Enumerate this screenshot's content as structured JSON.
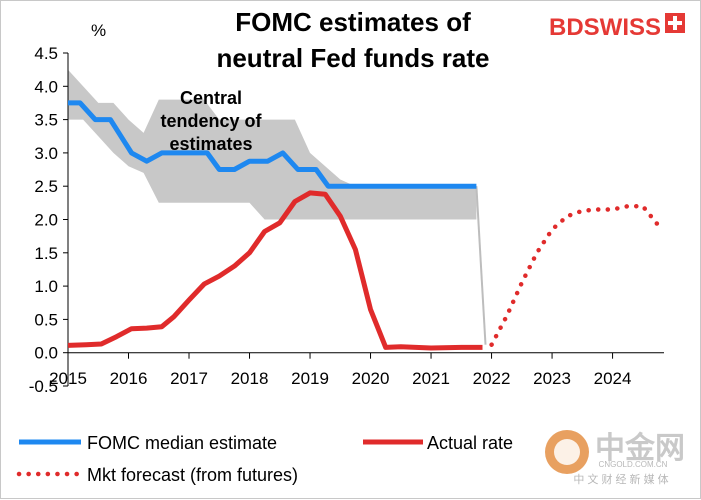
{
  "chart_data": {
    "type": "line",
    "title_lines": [
      "FOMC estimates of",
      "neutral Fed funds rate"
    ],
    "unit_label": "%",
    "annotation_lines": [
      "Central",
      "tendency of",
      "estimates"
    ],
    "ylim": [
      -0.5,
      4.5
    ],
    "y_ticks": [
      "-0.5",
      "0.0",
      "0.5",
      "1.0",
      "1.5",
      "2.0",
      "2.5",
      "3.0",
      "3.5",
      "4.0",
      "4.5"
    ],
    "xlim": [
      2015,
      2024.85
    ],
    "x_ticks": [
      "2015",
      "2016",
      "2017",
      "2018",
      "2019",
      "2020",
      "2021",
      "2022",
      "2023",
      "2024"
    ],
    "band": {
      "name": "Central tendency of estimates",
      "x": [
        2015.0,
        2015.25,
        2015.5,
        2015.75,
        2016.0,
        2016.25,
        2016.5,
        2016.75,
        2017.0,
        2017.25,
        2017.5,
        2017.75,
        2018.0,
        2018.25,
        2018.5,
        2018.75,
        2019.0,
        2019.25,
        2019.5,
        2019.75,
        2020.0,
        2021.75
      ],
      "upper": [
        4.25,
        4.0,
        3.75,
        3.75,
        3.5,
        3.3,
        3.8,
        3.8,
        3.8,
        3.8,
        3.5,
        3.5,
        3.5,
        3.5,
        3.5,
        3.5,
        3.0,
        2.8,
        2.6,
        2.5,
        2.5,
        2.5
      ],
      "lower": [
        3.5,
        3.5,
        3.25,
        3.0,
        2.8,
        2.7,
        2.25,
        2.25,
        2.25,
        2.25,
        2.25,
        2.25,
        2.25,
        2.0,
        2.0,
        2.0,
        2.0,
        2.0,
        2.0,
        2.0,
        2.0,
        2.0
      ]
    },
    "series": [
      {
        "name": "FOMC median estimate",
        "color": "#1e88f0",
        "x": [
          2015.0,
          2015.2,
          2015.45,
          2015.7,
          2016.05,
          2016.3,
          2016.55,
          2016.8,
          2017.3,
          2017.5,
          2017.75,
          2018.0,
          2018.3,
          2018.55,
          2018.8,
          2019.1,
          2019.3,
          2019.55,
          2021.75
        ],
        "y": [
          3.75,
          3.75,
          3.5,
          3.5,
          3.0,
          2.875,
          3.0,
          3.0,
          3.0,
          2.75,
          2.75,
          2.875,
          2.875,
          3.0,
          2.75,
          2.75,
          2.5,
          2.5,
          2.5
        ]
      },
      {
        "name": "Actual rate",
        "color": "#e02b2b",
        "x": [
          2015.0,
          2015.3,
          2015.55,
          2015.8,
          2016.05,
          2016.3,
          2016.55,
          2016.75,
          2017.0,
          2017.25,
          2017.5,
          2017.75,
          2018.0,
          2018.25,
          2018.5,
          2018.75,
          2019.0,
          2019.25,
          2019.5,
          2019.75,
          2020.0,
          2020.25,
          2020.5,
          2021.0,
          2021.5,
          2021.85
        ],
        "y": [
          0.11,
          0.12,
          0.13,
          0.24,
          0.36,
          0.37,
          0.39,
          0.54,
          0.79,
          1.03,
          1.15,
          1.3,
          1.5,
          1.82,
          1.95,
          2.27,
          2.4,
          2.38,
          2.05,
          1.55,
          0.65,
          0.08,
          0.09,
          0.07,
          0.08,
          0.08
        ]
      },
      {
        "name": "Mkt forecast (from futures)",
        "color": "#e02b2b",
        "x": [
          2022.0,
          2022.25,
          2022.5,
          2022.75,
          2023.0,
          2023.25,
          2023.5,
          2023.75,
          2024.0,
          2024.25,
          2024.5,
          2024.75
        ],
        "y": [
          0.12,
          0.55,
          1.05,
          1.5,
          1.85,
          2.05,
          2.13,
          2.15,
          2.15,
          2.2,
          2.2,
          1.92
        ]
      }
    ],
    "connector": {
      "color": "#bdbdbd",
      "x": [
        2021.75,
        2021.9
      ],
      "y": [
        2.5,
        0.12
      ]
    },
    "grid": false,
    "legend_position": "bottom"
  },
  "legend": {
    "items": [
      {
        "label": "FOMC median estimate"
      },
      {
        "label": "Actual rate"
      },
      {
        "label": "Mkt forecast (from futures)"
      }
    ]
  },
  "logos": {
    "bdswiss": "BDSWISS",
    "cngold_main": "中金网",
    "cngold_url": "CNGOLD.COM.CN",
    "cngold_sub": "中 文 财 经 新 媒 体"
  }
}
